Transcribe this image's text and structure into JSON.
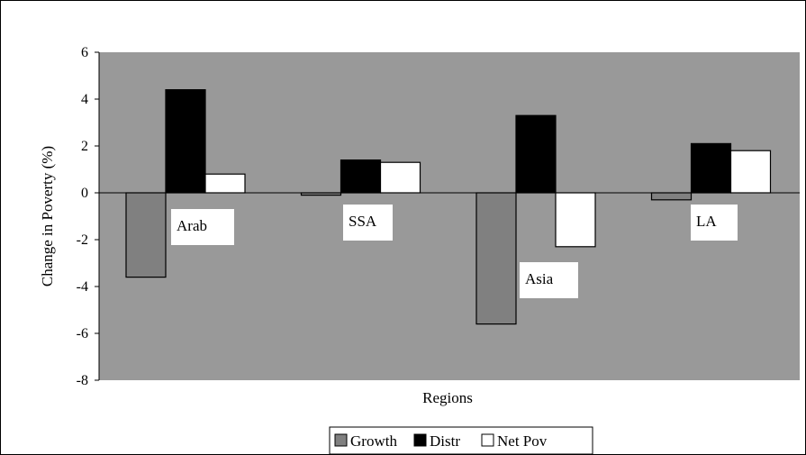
{
  "chart_data": {
    "type": "bar",
    "categories": [
      "Arab",
      "SSA",
      "Asia",
      "LA"
    ],
    "series": [
      {
        "name": "Growth",
        "values": [
          -3.6,
          -0.1,
          -5.6,
          -0.3
        ],
        "color": "#808080"
      },
      {
        "name": "Distr",
        "values": [
          4.4,
          1.4,
          3.3,
          2.1
        ],
        "color": "#000000"
      },
      {
        "name": "Net Pov",
        "values": [
          0.8,
          1.3,
          -2.3,
          1.8
        ],
        "color": "#ffffff"
      }
    ],
    "title": "",
    "xlabel": "Regions",
    "ylabel": "Change in Poverty (%)",
    "ylim": [
      -8,
      6
    ],
    "yticks": [
      6,
      4,
      2,
      0,
      -2,
      -4,
      -6,
      -8
    ],
    "grid": false,
    "legend": "bottom",
    "plot_background": "#999999"
  }
}
